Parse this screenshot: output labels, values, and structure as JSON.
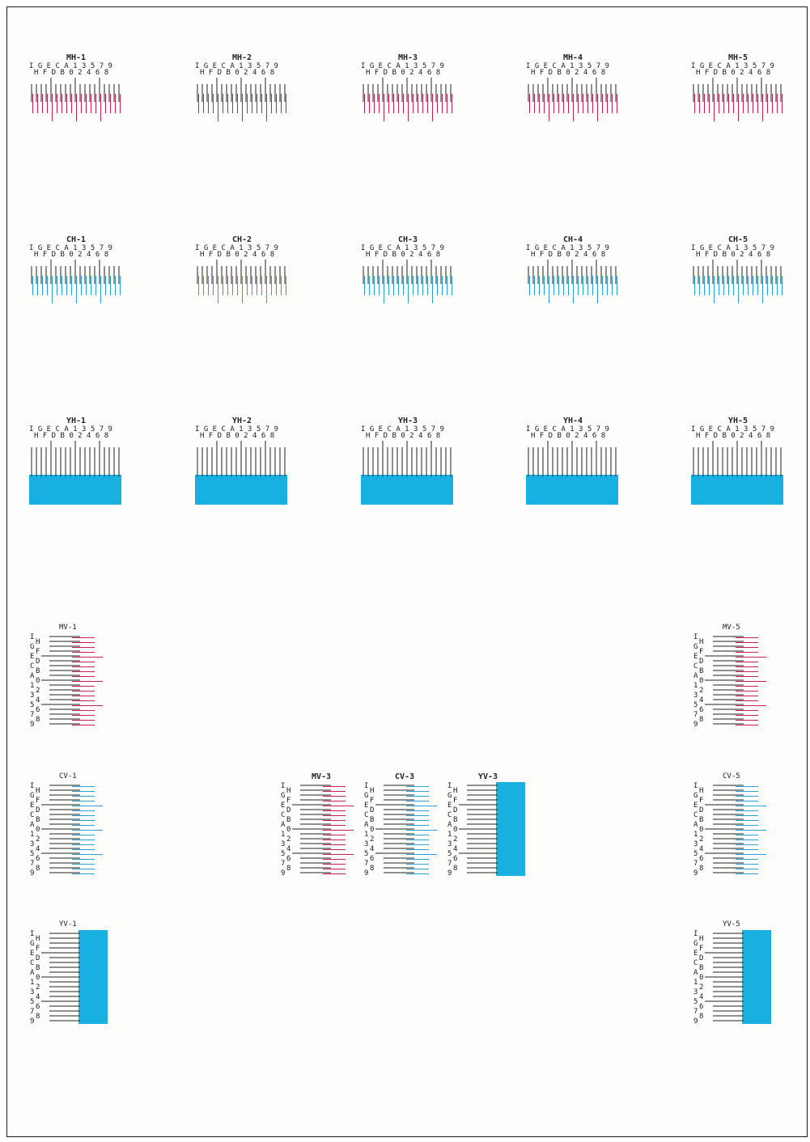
{
  "chart_labels": {
    "top_scale": "I G E C A 1 3 5 7 9",
    "bottom_scale": "H F D B 0 2 4 6 8",
    "vertical_labels": [
      "I",
      "H",
      "G",
      "F",
      "E",
      "D",
      "C",
      "B",
      "A",
      "0",
      "1",
      "2",
      "3",
      "4",
      "5",
      "6",
      "7",
      "8",
      "9"
    ]
  },
  "horizontal_charts": [
    {
      "title": "MH-1",
      "color": "#c8205a",
      "style": "lines"
    },
    {
      "title": "MH-2",
      "color": "#c8205a",
      "style": "lines"
    },
    {
      "title": "MH-3",
      "color": "#c8205a",
      "style": "lines"
    },
    {
      "title": "MH-4",
      "color": "#c8205a",
      "style": "lines"
    },
    {
      "title": "MH-5",
      "color": "#c8205a",
      "style": "lines"
    },
    {
      "title": "CH-1",
      "color": "#2aa0d8",
      "style": "lines"
    },
    {
      "title": "CH-2",
      "color": "#2aa0d8",
      "style": "lines"
    },
    {
      "title": "CH-3",
      "color": "#2aa0d8",
      "style": "lines"
    },
    {
      "title": "CH-4",
      "color": "#2aa0d8",
      "style": "lines"
    },
    {
      "title": "CH-5",
      "color": "#2aa0d8",
      "style": "lines"
    },
    {
      "title": "YH-1",
      "color": "#18b0e0",
      "style": "block"
    },
    {
      "title": "YH-2",
      "color": "#18b0e0",
      "style": "block"
    },
    {
      "title": "YH-3",
      "color": "#18b0e0",
      "style": "block"
    },
    {
      "title": "YH-4",
      "color": "#18b0e0",
      "style": "block"
    },
    {
      "title": "YH-5",
      "color": "#18b0e0",
      "style": "block"
    }
  ],
  "vertical_charts": [
    {
      "title": "MV-1",
      "color": "#c8205a",
      "style": "lines"
    },
    {
      "title": "MV-5",
      "color": "#c8205a",
      "style": "lines"
    },
    {
      "title": "CV-1",
      "color": "#2aa0d8",
      "style": "lines"
    },
    {
      "title": "MV-3",
      "color": "#c8205a",
      "style": "lines"
    },
    {
      "title": "CV-3",
      "color": "#2aa0d8",
      "style": "lines"
    },
    {
      "title": "YV-3",
      "color": "#18b0e0",
      "style": "block"
    },
    {
      "title": "CV-5",
      "color": "#2aa0d8",
      "style": "lines"
    },
    {
      "title": "YV-1",
      "color": "#18b0e0",
      "style": "block"
    },
    {
      "title": "YV-5",
      "color": "#18b0e0",
      "style": "block"
    }
  ]
}
